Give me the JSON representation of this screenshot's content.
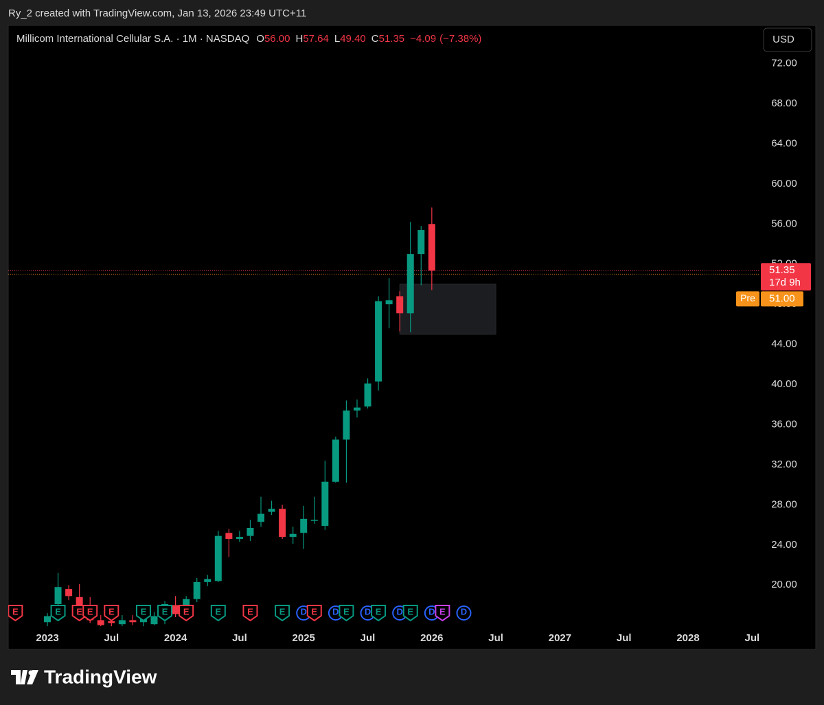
{
  "header": {
    "attribution": "Ry_2 created with TradingView.com, Jan 13, 2026 23:49 UTC+11"
  },
  "footer": {
    "brand": "TradingView"
  },
  "chart_data": {
    "type": "candlestick",
    "title": "Millicom International Cellular S.A. · 1M · NASDAQ",
    "currency": "USD",
    "legend": [
      {
        "key": "O",
        "value": 56.0,
        "label": "56.00"
      },
      {
        "key": "H",
        "value": 57.64,
        "label": "57.64"
      },
      {
        "key": "L",
        "value": 49.4,
        "label": "49.40"
      },
      {
        "key": "C",
        "value": 51.35,
        "label": "51.35"
      }
    ],
    "change": {
      "value": -4.09,
      "label": "−4.09"
    },
    "change_percent": {
      "value": -7.38,
      "label": "(−7.38%)"
    },
    "up_color": "#089981",
    "down_color": "#f23645",
    "x": [
      "2023-01",
      "2023-02",
      "2023-03",
      "2023-04",
      "2023-05",
      "2023-06",
      "2023-07",
      "2023-08",
      "2023-09",
      "2023-10",
      "2023-11",
      "2023-12",
      "2024-01",
      "2024-02",
      "2024-03",
      "2024-04",
      "2024-05",
      "2024-06",
      "2024-07",
      "2024-08",
      "2024-09",
      "2024-10",
      "2024-11",
      "2024-12",
      "2025-01",
      "2025-02",
      "2025-03",
      "2025-04",
      "2025-05",
      "2025-06",
      "2025-07",
      "2025-08",
      "2025-09",
      "2025-10",
      "2025-11",
      "2025-12",
      "2026-01"
    ],
    "open": [
      16.3,
      18.1,
      19.6,
      18.8,
      17.9,
      16.5,
      16.4,
      16.1,
      16.5,
      16.3,
      16.1,
      16.9,
      18.0,
      17.9,
      18.6,
      20.3,
      20.4,
      25.2,
      24.6,
      24.9,
      26.3,
      27.3,
      27.6,
      24.8,
      25.2,
      26.4,
      25.9,
      30.3,
      34.5,
      37.4,
      37.8,
      40.3,
      48.0,
      48.8,
      47.1,
      53.0,
      56.0
    ],
    "high": [
      17.2,
      21.2,
      20.0,
      20.1,
      18.8,
      17.0,
      16.8,
      17.0,
      17.0,
      17.2,
      17.3,
      18.4,
      18.9,
      18.9,
      20.7,
      21.0,
      25.4,
      25.6,
      25.4,
      26.5,
      28.8,
      28.4,
      28.0,
      25.8,
      27.9,
      28.8,
      32.4,
      34.8,
      38.4,
      38.5,
      40.6,
      48.8,
      50.6,
      49.3,
      56.2,
      55.8,
      57.64
    ],
    "low": [
      15.9,
      17.5,
      18.5,
      16.7,
      16.2,
      15.9,
      15.9,
      15.9,
      16.0,
      15.9,
      16.0,
      16.1,
      16.8,
      17.6,
      18.3,
      19.9,
      20.3,
      22.8,
      24.3,
      24.4,
      25.8,
      27.0,
      24.6,
      24.1,
      23.6,
      26.1,
      25.5,
      30.2,
      30.2,
      36.7,
      37.6,
      39.4,
      45.6,
      45.3,
      45.2,
      49.9,
      49.4
    ],
    "close": [
      16.9,
      19.8,
      18.9,
      17.9,
      16.5,
      16.0,
      16.2,
      16.5,
      16.3,
      16.8,
      16.9,
      18.1,
      17.1,
      18.6,
      20.3,
      20.6,
      24.9,
      24.6,
      24.8,
      25.7,
      27.1,
      27.6,
      24.8,
      25.1,
      26.6,
      26.5,
      30.3,
      34.5,
      37.4,
      37.7,
      40.1,
      48.3,
      48.4,
      47.1,
      53.0,
      55.4,
      51.35
    ],
    "xlim": [
      "2022-09",
      "2028-08"
    ],
    "xticks": [
      {
        "value": "2023-01",
        "label": "2023"
      },
      {
        "value": "2023-07",
        "label": "Jul"
      },
      {
        "value": "2024-01",
        "label": "2024"
      },
      {
        "value": "2024-07",
        "label": "Jul"
      },
      {
        "value": "2025-01",
        "label": "2025"
      },
      {
        "value": "2025-07",
        "label": "Jul"
      },
      {
        "value": "2026-01",
        "label": "2026"
      },
      {
        "value": "2026-07",
        "label": "Jul"
      },
      {
        "value": "2027-01",
        "label": "2027"
      },
      {
        "value": "2027-07",
        "label": "Jul"
      },
      {
        "value": "2028-01",
        "label": "2028"
      },
      {
        "value": "2028-07",
        "label": "Jul"
      }
    ],
    "ylim": [
      15.5,
      75.8
    ],
    "yticks": [
      {
        "value": 20,
        "label": "20.00"
      },
      {
        "value": 24,
        "label": "24.00"
      },
      {
        "value": 28,
        "label": "28.00"
      },
      {
        "value": 32,
        "label": "32.00"
      },
      {
        "value": 36,
        "label": "36.00"
      },
      {
        "value": 40,
        "label": "40.00"
      },
      {
        "value": 44,
        "label": "44.00"
      },
      {
        "value": 48,
        "label": "48.00"
      },
      {
        "value": 52,
        "label": "52.00"
      },
      {
        "value": 56,
        "label": "56.00"
      },
      {
        "value": 60,
        "label": "60.00"
      },
      {
        "value": 64,
        "label": "64.00"
      },
      {
        "value": 68,
        "label": "68.00"
      },
      {
        "value": 72,
        "label": "72.00"
      }
    ],
    "last_price": {
      "value": 51.35,
      "label": "51.35",
      "countdown": "17d 9h",
      "color": "#f23645"
    },
    "pre_market": {
      "tag": "Pre",
      "value": 51.0,
      "label": "51.00",
      "color": "#f7931a"
    },
    "zone": {
      "x": [
        "2025-10",
        "2026-07"
      ],
      "y": [
        45.0,
        50.0
      ],
      "color": "#1b1d21"
    },
    "events": [
      {
        "x": "2022-10",
        "label": "E",
        "color": "#f23645"
      },
      {
        "x": "2023-02",
        "label": "E",
        "color": "#089981"
      },
      {
        "x": "2023-04",
        "label": "E",
        "color": "#f23645"
      },
      {
        "x": "2023-05",
        "label": "E",
        "color": "#f23645"
      },
      {
        "x": "2023-07",
        "label": "E",
        "color": "#f23645"
      },
      {
        "x": "2023-10",
        "label": "E",
        "color": "#089981"
      },
      {
        "x": "2023-12",
        "label": "E",
        "color": "#089981"
      },
      {
        "x": "2024-02",
        "label": "E",
        "color": "#f23645"
      },
      {
        "x": "2024-05",
        "label": "E",
        "color": "#089981"
      },
      {
        "x": "2024-08",
        "label": "E",
        "color": "#f23645"
      },
      {
        "x": "2024-11",
        "label": "E",
        "color": "#089981"
      },
      {
        "x": "2025-01",
        "label": "D",
        "color": "#2962ff"
      },
      {
        "x": "2025-02",
        "label": "E",
        "color": "#f23645"
      },
      {
        "x": "2025-04",
        "label": "D",
        "color": "#2962ff"
      },
      {
        "x": "2025-05",
        "label": "E",
        "color": "#089981"
      },
      {
        "x": "2025-07",
        "label": "D",
        "color": "#2962ff"
      },
      {
        "x": "2025-08",
        "label": "E",
        "color": "#089981"
      },
      {
        "x": "2025-10",
        "label": "D",
        "color": "#2962ff"
      },
      {
        "x": "2025-11",
        "label": "E",
        "color": "#089981"
      },
      {
        "x": "2026-01",
        "label": "D",
        "color": "#2962ff"
      },
      {
        "x": "2026-02",
        "label": "E",
        "color": "#c840e9"
      },
      {
        "x": "2026-04",
        "label": "D",
        "color": "#2962ff"
      }
    ]
  }
}
